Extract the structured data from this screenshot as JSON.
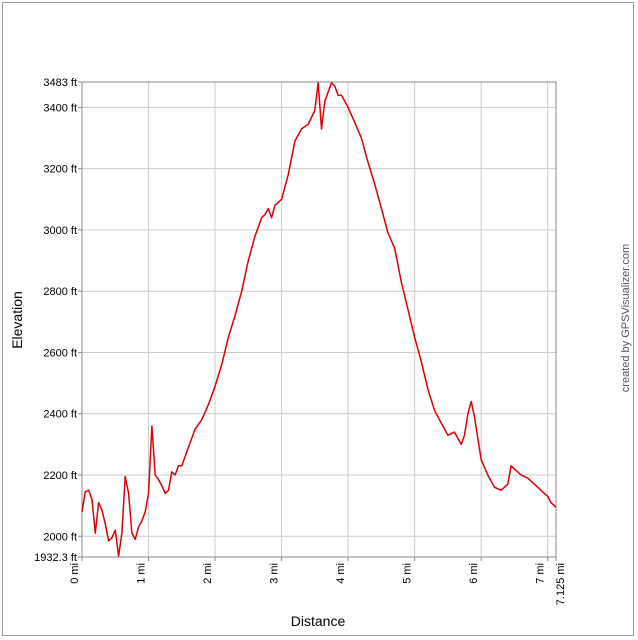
{
  "chart_data": {
    "type": "line",
    "xlabel": "Distance",
    "ylabel": "Elevation",
    "xlim": [
      0,
      7.125
    ],
    "ylim": [
      1932.3,
      3483
    ],
    "x_ticks": [
      {
        "value": 0,
        "label": "0 mi"
      },
      {
        "value": 1,
        "label": "1 mi"
      },
      {
        "value": 2,
        "label": "2 mi"
      },
      {
        "value": 3,
        "label": "3 mi"
      },
      {
        "value": 4,
        "label": "4 mi"
      },
      {
        "value": 5,
        "label": "5 mi"
      },
      {
        "value": 6,
        "label": "6 mi"
      },
      {
        "value": 7,
        "label": "7 mi"
      },
      {
        "value": 7.125,
        "label": "7.125 mi"
      }
    ],
    "y_ticks": [
      {
        "value": 1932.3,
        "label": "1932.3 ft"
      },
      {
        "value": 2000,
        "label": "2000 ft"
      },
      {
        "value": 2200,
        "label": "2200 ft"
      },
      {
        "value": 2400,
        "label": "2400 ft"
      },
      {
        "value": 2600,
        "label": "2600 ft"
      },
      {
        "value": 2800,
        "label": "2800 ft"
      },
      {
        "value": 3000,
        "label": "3000 ft"
      },
      {
        "value": 3200,
        "label": "3200 ft"
      },
      {
        "value": 3400,
        "label": "3400 ft"
      },
      {
        "value": 3483,
        "label": "3483 ft"
      }
    ],
    "grid": true,
    "line_color": "#dd0000",
    "credit": "created by GPSVisualizer.com",
    "series": [
      {
        "x": [
          0.0,
          0.05,
          0.1,
          0.15,
          0.2,
          0.25,
          0.3,
          0.35,
          0.4,
          0.45,
          0.5,
          0.55,
          0.6,
          0.65,
          0.7,
          0.75,
          0.8,
          0.85,
          0.9,
          0.95,
          1.0,
          1.05,
          1.1,
          1.15,
          1.2,
          1.25,
          1.3,
          1.35,
          1.4,
          1.45,
          1.5,
          1.6,
          1.7,
          1.8,
          1.9,
          2.0,
          2.1,
          2.2,
          2.3,
          2.4,
          2.5,
          2.6,
          2.7,
          2.75,
          2.8,
          2.85,
          2.9,
          3.0,
          3.1,
          3.2,
          3.3,
          3.4,
          3.5,
          3.55,
          3.6,
          3.65,
          3.7,
          3.75,
          3.8,
          3.85,
          3.9,
          4.0,
          4.1,
          4.2,
          4.3,
          4.4,
          4.5,
          4.6,
          4.7,
          4.8,
          4.9,
          5.0,
          5.1,
          5.2,
          5.3,
          5.4,
          5.5,
          5.6,
          5.7,
          5.75,
          5.8,
          5.85,
          5.9,
          5.95,
          6.0,
          6.1,
          6.2,
          6.3,
          6.4,
          6.45,
          6.5,
          6.6,
          6.7,
          6.8,
          6.9,
          7.0,
          7.05,
          7.1,
          7.125
        ],
        "y": [
          2080,
          2145,
          2150,
          2120,
          2010,
          2110,
          2085,
          2040,
          1985,
          1995,
          2020,
          1935,
          2010,
          2195,
          2140,
          2010,
          1990,
          2030,
          2050,
          2080,
          2140,
          2360,
          2200,
          2185,
          2165,
          2140,
          2150,
          2210,
          2200,
          2230,
          2230,
          2290,
          2350,
          2380,
          2430,
          2490,
          2560,
          2650,
          2720,
          2800,
          2900,
          2980,
          3040,
          3050,
          3070,
          3040,
          3080,
          3100,
          3180,
          3290,
          3330,
          3345,
          3390,
          3480,
          3330,
          3420,
          3450,
          3480,
          3470,
          3440,
          3440,
          3400,
          3350,
          3300,
          3220,
          3150,
          3070,
          2990,
          2940,
          2830,
          2740,
          2650,
          2570,
          2480,
          2410,
          2370,
          2330,
          2340,
          2300,
          2330,
          2400,
          2440,
          2390,
          2320,
          2250,
          2200,
          2160,
          2150,
          2170,
          2230,
          2220,
          2200,
          2190,
          2170,
          2150,
          2130,
          2110,
          2100,
          2095
        ]
      }
    ]
  }
}
